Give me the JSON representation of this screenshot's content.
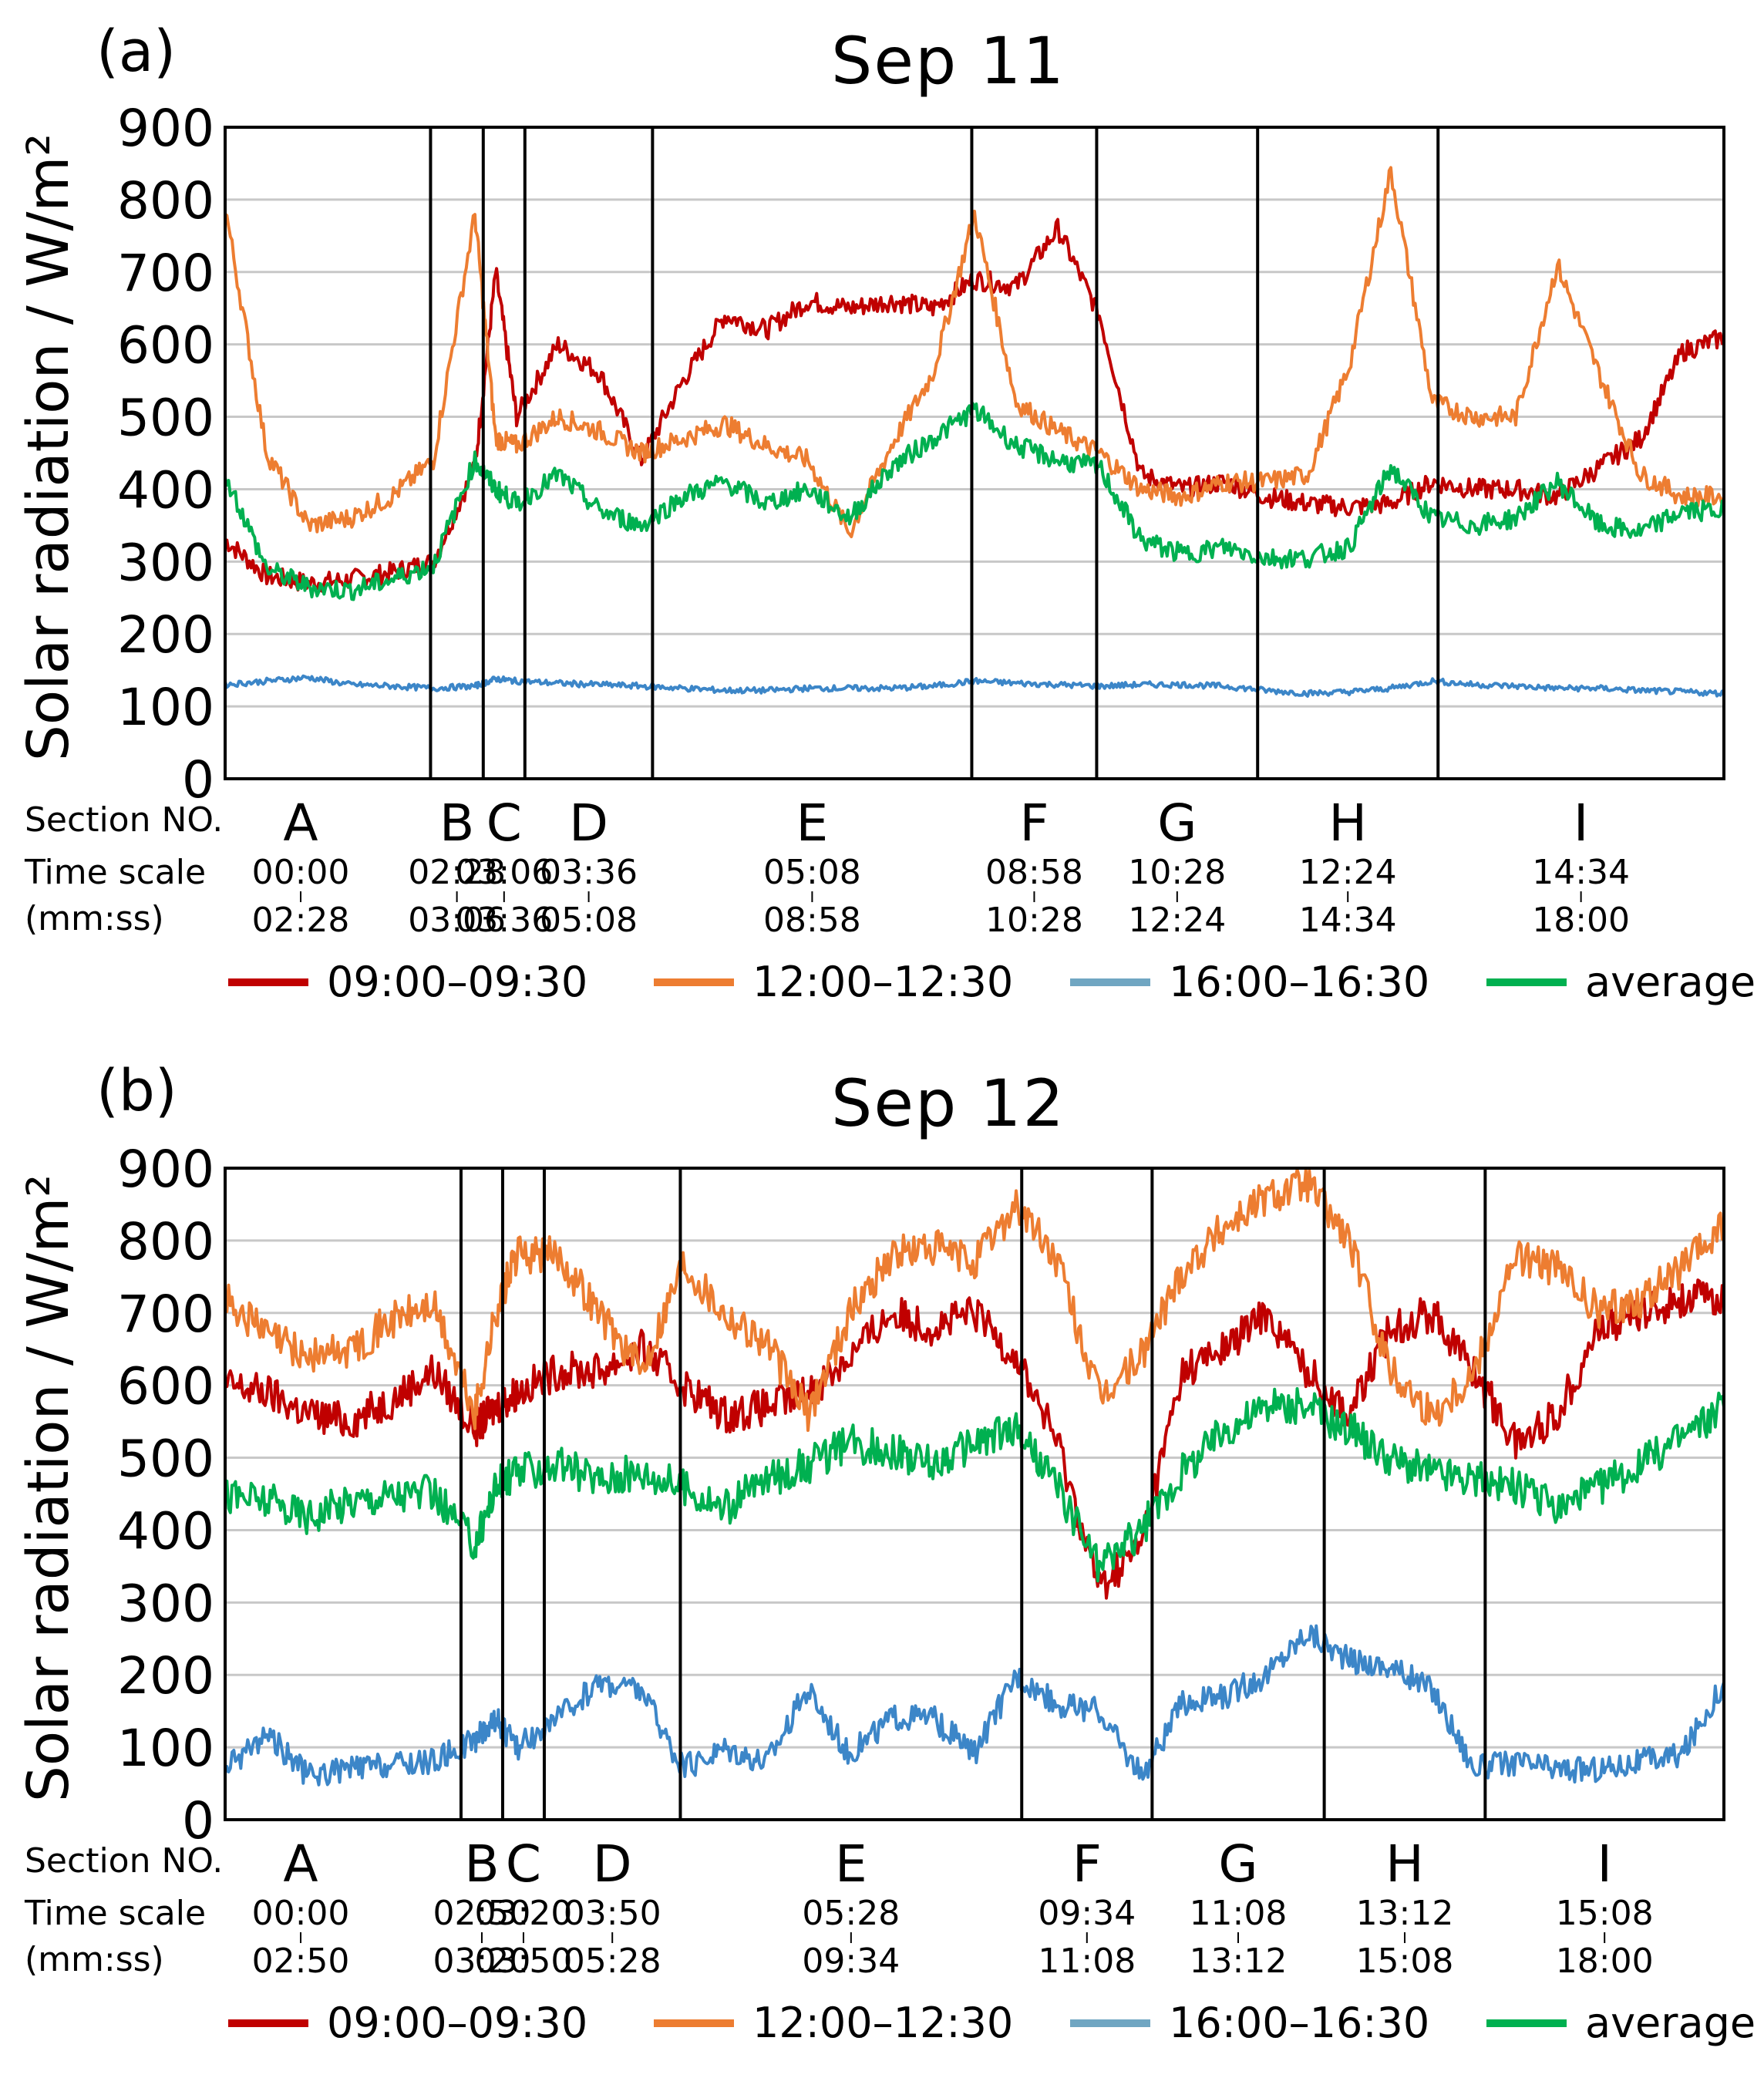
{
  "row_labels": {
    "section": "Section NO.",
    "time": "Time scale",
    "units": "(mm:ss)"
  },
  "legend": [
    {
      "label": "09:00–09:30",
      "color": "#c00000"
    },
    {
      "label": "12:00–12:30",
      "color": "#ed7d31"
    },
    {
      "label": "16:00–16:30",
      "color": "#70a6c2"
    },
    {
      "label": "average",
      "color": "#00b050"
    }
  ],
  "chart_data": [
    {
      "type": "line",
      "panel": "(a)",
      "title": "Sep 11",
      "xlabel": "",
      "ylabel": "Solar radiation / W/m²",
      "ylim": [
        0,
        900
      ],
      "yticks": [
        0,
        100,
        200,
        300,
        400,
        500,
        600,
        700,
        800,
        900
      ],
      "xlim": [
        0,
        18
      ],
      "section_boundaries_min": [
        2.467,
        3.1,
        3.6,
        5.133,
        8.967,
        10.467,
        12.4,
        14.567
      ],
      "sections": [
        {
          "name": "A",
          "start": "00:00",
          "end": "02:28"
        },
        {
          "name": "B",
          "start": "02:28",
          "end": "03:06"
        },
        {
          "name": "C",
          "start": "03:06",
          "end": "03:36"
        },
        {
          "name": "D",
          "start": "03:36",
          "end": "05:08"
        },
        {
          "name": "E",
          "start": "05:08",
          "end": "08:58"
        },
        {
          "name": "F",
          "start": "08:58",
          "end": "10:28"
        },
        {
          "name": "G",
          "start": "10:28",
          "end": "12:24"
        },
        {
          "name": "H",
          "start": "12:24",
          "end": "14:34"
        },
        {
          "name": "I",
          "start": "14:34",
          "end": "18:00"
        }
      ],
      "x": [
        0,
        0.5,
        1,
        1.5,
        2,
        2.5,
        3,
        3.25,
        3.5,
        4,
        4.5,
        5,
        5.5,
        6,
        6.5,
        7,
        7.5,
        8,
        8.5,
        9,
        9.5,
        10,
        10.5,
        11,
        11.5,
        12,
        12.5,
        13,
        13.5,
        14,
        14.5,
        15,
        15.5,
        16,
        16.5,
        17,
        17.5,
        18
      ],
      "series": [
        {
          "name": "09:00–09:30",
          "color": "#c00000",
          "values": [
            330,
            280,
            270,
            275,
            285,
            300,
            430,
            700,
            500,
            600,
            560,
            440,
            550,
            640,
            620,
            660,
            650,
            660,
            650,
            690,
            680,
            760,
            640,
            420,
            400,
            410,
            390,
            380,
            375,
            380,
            410,
            400,
            400,
            390,
            430,
            470,
            590,
            610
          ]
        },
        {
          "name": "12:00–12:30",
          "color": "#ed7d31",
          "values": [
            790,
            450,
            350,
            360,
            390,
            440,
            780,
            470,
            460,
            500,
            480,
            450,
            470,
            490,
            460,
            440,
            340,
            460,
            560,
            780,
            520,
            480,
            450,
            400,
            390,
            410,
            410,
            420,
            570,
            840,
            520,
            500,
            500,
            710,
            560,
            420,
            390,
            390
          ]
        },
        {
          "name": "16:00–16:30",
          "color": "#3c86c8",
          "values": [
            130,
            135,
            140,
            130,
            128,
            125,
            128,
            138,
            135,
            132,
            130,
            128,
            125,
            122,
            122,
            125,
            125,
            125,
            128,
            135,
            132,
            130,
            128,
            130,
            130,
            128,
            122,
            118,
            120,
            125,
            135,
            130,
            128,
            125,
            125,
            122,
            120,
            118
          ]
        },
        {
          "name": "average",
          "color": "#00b050",
          "values": [
            420,
            290,
            265,
            260,
            275,
            295,
            440,
            400,
            380,
            420,
            370,
            350,
            390,
            410,
            380,
            400,
            360,
            430,
            470,
            510,
            460,
            440,
            430,
            330,
            310,
            320,
            305,
            305,
            320,
            430,
            360,
            350,
            360,
            410,
            350,
            340,
            370,
            370
          ]
        }
      ]
    },
    {
      "type": "line",
      "panel": "(b)",
      "title": "Sep 12",
      "xlabel": "",
      "ylabel": "Solar radiation / W/m²",
      "ylim": [
        0,
        900
      ],
      "yticks": [
        0,
        100,
        200,
        300,
        400,
        500,
        600,
        700,
        800,
        900
      ],
      "xlim": [
        0,
        18
      ],
      "section_boundaries_min": [
        2.833,
        3.333,
        3.833,
        5.467,
        9.567,
        11.133,
        13.2,
        15.133
      ],
      "sections": [
        {
          "name": "A",
          "start": "00:00",
          "end": "02:50"
        },
        {
          "name": "B",
          "start": "02:50",
          "end": "03:20"
        },
        {
          "name": "C",
          "start": "03:20",
          "end": "03:50"
        },
        {
          "name": "D",
          "start": "03:50",
          "end": "05:28"
        },
        {
          "name": "E",
          "start": "05:28",
          "end": "09:34"
        },
        {
          "name": "F",
          "start": "09:34",
          "end": "11:08"
        },
        {
          "name": "G",
          "start": "11:08",
          "end": "13:12"
        },
        {
          "name": "H",
          "start": "13:12",
          "end": "15:08"
        },
        {
          "name": "I",
          "start": "15:08",
          "end": "18:00"
        }
      ],
      "x": [
        0,
        0.5,
        1,
        1.5,
        2,
        2.5,
        3,
        3.25,
        3.5,
        4,
        4.5,
        5,
        5.5,
        6,
        6.5,
        7,
        7.5,
        8,
        8.5,
        9,
        9.5,
        10,
        10.5,
        11,
        11.5,
        12,
        12.5,
        13,
        13.5,
        14,
        14.5,
        15,
        15.5,
        16,
        16.5,
        17,
        17.5,
        18
      ],
      "series": [
        {
          "name": "09:00–09:30",
          "color": "#c00000",
          "values": [
            600,
            590,
            560,
            550,
            580,
            620,
            540,
            570,
            590,
            620,
            620,
            650,
            600,
            560,
            570,
            590,
            640,
            700,
            680,
            700,
            640,
            520,
            320,
            380,
            620,
            650,
            700,
            620,
            560,
            680,
            700,
            620,
            520,
            560,
            680,
            700,
            720,
            720
          ]
        },
        {
          "name": "12:00–12:30",
          "color": "#ed7d31",
          "values": [
            720,
            670,
            640,
            650,
            690,
            710,
            560,
            700,
            780,
            780,
            700,
            620,
            770,
            700,
            660,
            560,
            700,
            780,
            790,
            770,
            850,
            770,
            580,
            640,
            760,
            820,
            860,
            880,
            800,
            620,
            560,
            620,
            780,
            760,
            700,
            720,
            760,
            820
          ]
        },
        {
          "name": "16:00–16:30",
          "color": "#3c86c8",
          "values": [
            70,
            120,
            60,
            70,
            75,
            80,
            110,
            140,
            100,
            140,
            190,
            180,
            70,
            100,
            80,
            180,
            90,
            140,
            140,
            90,
            200,
            160,
            150,
            60,
            160,
            170,
            200,
            260,
            220,
            210,
            180,
            70,
            80,
            70,
            70,
            80,
            90,
            190
          ]
        },
        {
          "name": "average",
          "color": "#00b050",
          "values": [
            450,
            440,
            420,
            440,
            450,
            450,
            380,
            460,
            480,
            490,
            470,
            480,
            460,
            430,
            470,
            490,
            520,
            510,
            490,
            520,
            540,
            460,
            350,
            400,
            480,
            540,
            570,
            570,
            540,
            500,
            480,
            470,
            460,
            430,
            460,
            490,
            530,
            570
          ]
        }
      ]
    }
  ]
}
